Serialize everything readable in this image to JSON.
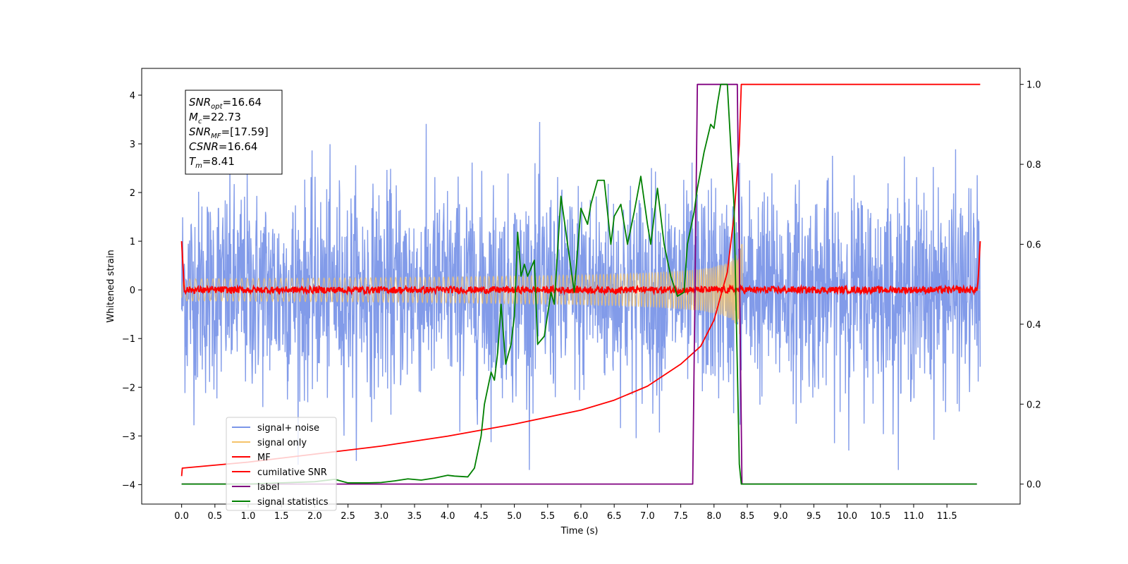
{
  "chart_data": {
    "type": "line",
    "xlabel": "Time (s)",
    "ylabel": "Whitened strain",
    "xlim": [
      -0.6,
      12.6
    ],
    "ylim": [
      -4.4,
      4.55
    ],
    "ylim_right": [
      -0.05,
      1.04
    ],
    "grid": false,
    "legend_location": "lower-left",
    "x_ticks": [
      "0.0",
      "0.5",
      "1.0",
      "1.5",
      "2.0",
      "2.5",
      "3.0",
      "3.5",
      "4.0",
      "4.5",
      "5.0",
      "5.5",
      "6.0",
      "6.5",
      "7.0",
      "7.5",
      "8.0",
      "8.5",
      "9.0",
      "9.5",
      "10.0",
      "10.5",
      "11.0",
      "11.5"
    ],
    "y_ticks_left": [
      "4",
      "3",
      "2",
      "1",
      "0",
      "−1",
      "−2",
      "−3",
      "−4"
    ],
    "y_ticks_right": [
      "1.0",
      "0.8",
      "0.6",
      "0.4",
      "0.2",
      "0.0"
    ],
    "annotation": {
      "lines": [
        {
          "sym": "SNR",
          "sub": "opt",
          "val": "=16.64"
        },
        {
          "sym": "M",
          "sub": "c",
          "val": "=22.73"
        },
        {
          "sym": "SNR",
          "sub": "MF",
          "val": "=[17.59]"
        },
        {
          "sym": "CSNR",
          "sub": "",
          "val": "=16.64"
        },
        {
          "sym": "T",
          "sub": "m",
          "val": "=8.41"
        }
      ]
    },
    "series": [
      {
        "name": "signal+ noise",
        "color": "#7b96e8",
        "axis": "left",
        "kind": "gaussian noise with injected chirp",
        "noise_std": 1.0,
        "x_range": [
          0.0,
          12.0
        ],
        "typical_envelope": [
          -2.5,
          2.7
        ],
        "max": 3.45,
        "min": -3.7
      },
      {
        "name": "signal only",
        "color": "#f5c36a",
        "axis": "left",
        "kind": "chirp",
        "merger_time": 8.41,
        "peak_amplitude": 1.0,
        "x_range": [
          0.0,
          12.0
        ]
      },
      {
        "name": "MF",
        "color": "#ff0000",
        "axis": "left",
        "kind": "matched filter output",
        "x_range": [
          0.0,
          12.0
        ],
        "level": 0.0,
        "ripple": 0.07,
        "edge_values": [
          1.0,
          1.0
        ]
      },
      {
        "name": "cumilative SNR",
        "color": "#ff0000",
        "axis": "right",
        "x": [
          0.0,
          0.01,
          1.0,
          2.0,
          3.0,
          4.0,
          5.0,
          6.0,
          6.5,
          7.0,
          7.5,
          7.8,
          8.0,
          8.2,
          8.3,
          8.38,
          8.41,
          12.0
        ],
        "values": [
          0.02,
          0.04,
          0.055,
          0.075,
          0.095,
          0.12,
          0.15,
          0.185,
          0.21,
          0.245,
          0.3,
          0.345,
          0.41,
          0.53,
          0.67,
          0.85,
          1.0,
          1.0
        ]
      },
      {
        "name": "label",
        "color": "#800080",
        "axis": "right",
        "x": [
          0.0,
          7.68,
          7.75,
          8.35,
          8.42,
          11.95
        ],
        "values": [
          0.0,
          0.0,
          1.0,
          1.0,
          0.0,
          0.0
        ]
      },
      {
        "name": "signal statistics",
        "color": "#008000",
        "axis": "right",
        "x": [
          0.0,
          0.5,
          1.0,
          1.5,
          2.0,
          2.3,
          2.5,
          2.8,
          3.0,
          3.2,
          3.4,
          3.6,
          3.8,
          4.0,
          4.1,
          4.3,
          4.4,
          4.5,
          4.55,
          4.65,
          4.7,
          4.75,
          4.8,
          4.87,
          4.95,
          5.0,
          5.05,
          5.1,
          5.15,
          5.2,
          5.3,
          5.35,
          5.45,
          5.55,
          5.6,
          5.7,
          5.8,
          5.9,
          6.0,
          6.1,
          6.15,
          6.25,
          6.35,
          6.45,
          6.5,
          6.6,
          6.7,
          6.8,
          6.9,
          7.0,
          7.05,
          7.15,
          7.25,
          7.35,
          7.45,
          7.55,
          7.6,
          7.7,
          7.75,
          7.85,
          7.95,
          8.0,
          8.05,
          8.1,
          8.2,
          8.3,
          8.38,
          8.41,
          8.5,
          11.95
        ],
        "values": [
          0.0,
          0.0,
          0.0,
          0.003,
          0.006,
          0.012,
          0.003,
          0.003,
          0.004,
          0.008,
          0.013,
          0.01,
          0.015,
          0.022,
          0.02,
          0.018,
          0.04,
          0.12,
          0.2,
          0.28,
          0.26,
          0.33,
          0.45,
          0.3,
          0.35,
          0.42,
          0.63,
          0.52,
          0.55,
          0.52,
          0.56,
          0.35,
          0.37,
          0.48,
          0.45,
          0.72,
          0.6,
          0.48,
          0.69,
          0.65,
          0.7,
          0.76,
          0.76,
          0.6,
          0.67,
          0.7,
          0.6,
          0.68,
          0.77,
          0.65,
          0.6,
          0.74,
          0.6,
          0.52,
          0.47,
          0.48,
          0.6,
          0.68,
          0.74,
          0.83,
          0.9,
          0.89,
          0.95,
          1.0,
          1.0,
          0.7,
          0.05,
          0.0,
          0.0,
          0.0
        ]
      }
    ]
  }
}
